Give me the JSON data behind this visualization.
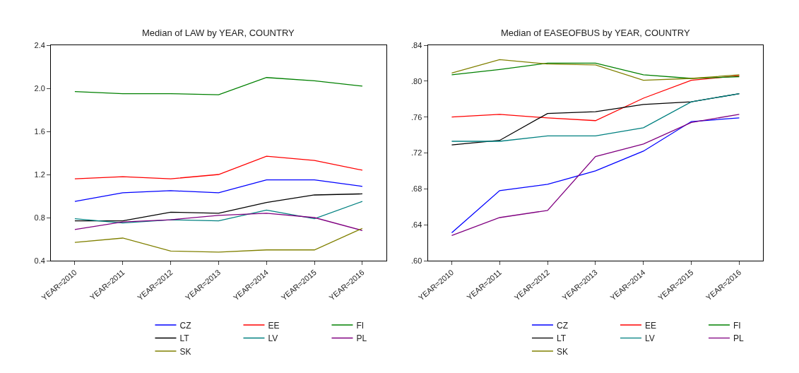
{
  "chart_data": [
    {
      "type": "line",
      "title": "Median of LAW by YEAR, COUNTRY",
      "categories": [
        "YEAR=2010",
        "YEAR=2011",
        "YEAR=2012",
        "YEAR=2013",
        "YEAR=2014",
        "YEAR=2015",
        "YEAR=2016"
      ],
      "ylim": [
        0.4,
        2.4
      ],
      "yticks": [
        {
          "value": 0.4,
          "label": "0.4"
        },
        {
          "value": 0.8,
          "label": "0.8"
        },
        {
          "value": 1.2,
          "label": "1.2"
        },
        {
          "value": 1.6,
          "label": "1.6"
        },
        {
          "value": 2.0,
          "label": "2.0"
        },
        {
          "value": 2.4,
          "label": "2.4"
        }
      ],
      "legend": "bottom",
      "marker": "none",
      "line_style": "solid",
      "series": [
        {
          "name": "CZ",
          "color": "#0000ff",
          "values": [
            0.95,
            1.03,
            1.05,
            1.03,
            1.15,
            1.15,
            1.09
          ]
        },
        {
          "name": "EE",
          "color": "#ff0000",
          "values": [
            1.16,
            1.18,
            1.16,
            1.2,
            1.37,
            1.33,
            1.24
          ]
        },
        {
          "name": "FI",
          "color": "#008000",
          "values": [
            1.97,
            1.95,
            1.95,
            1.94,
            2.1,
            2.07,
            2.02
          ]
        },
        {
          "name": "LT",
          "color": "#000000",
          "values": [
            0.77,
            0.77,
            0.85,
            0.84,
            0.94,
            1.01,
            1.02
          ]
        },
        {
          "name": "LV",
          "color": "#008080",
          "values": [
            0.79,
            0.75,
            0.78,
            0.77,
            0.87,
            0.79,
            0.95
          ]
        },
        {
          "name": "PL",
          "color": "#800080",
          "values": [
            0.69,
            0.76,
            0.78,
            0.82,
            0.84,
            0.8,
            0.68
          ]
        },
        {
          "name": "SK",
          "color": "#808000",
          "values": [
            0.57,
            0.61,
            0.49,
            0.48,
            0.5,
            0.5,
            0.7
          ]
        }
      ]
    },
    {
      "type": "line",
      "title": "Median of EASEOFBUS by YEAR, COUNTRY",
      "categories": [
        "YEAR=2010",
        "YEAR=2011",
        "YEAR=2012",
        "YEAR=2013",
        "YEAR=2014",
        "YEAR=2015",
        "YEAR=2016"
      ],
      "ylim": [
        0.6,
        0.84
      ],
      "yticks": [
        {
          "value": 0.6,
          "label": ".60"
        },
        {
          "value": 0.64,
          "label": ".64"
        },
        {
          "value": 0.68,
          "label": ".68"
        },
        {
          "value": 0.72,
          "label": ".72"
        },
        {
          "value": 0.76,
          "label": ".76"
        },
        {
          "value": 0.8,
          "label": ".80"
        },
        {
          "value": 0.84,
          "label": ".84"
        }
      ],
      "legend": "bottom",
      "marker": "none",
      "line_style": "solid",
      "series": [
        {
          "name": "CZ",
          "color": "#0000ff",
          "values": [
            0.631,
            0.678,
            0.685,
            0.7,
            0.722,
            0.755,
            0.759
          ]
        },
        {
          "name": "EE",
          "color": "#ff0000",
          "values": [
            0.76,
            0.763,
            0.759,
            0.756,
            0.781,
            0.801,
            0.806
          ]
        },
        {
          "name": "FI",
          "color": "#008000",
          "values": [
            0.807,
            0.813,
            0.82,
            0.82,
            0.807,
            0.803,
            0.805
          ]
        },
        {
          "name": "LT",
          "color": "#000000",
          "values": [
            0.729,
            0.734,
            0.764,
            0.766,
            0.774,
            0.777,
            0.786
          ]
        },
        {
          "name": "LV",
          "color": "#008080",
          "values": [
            0.733,
            0.733,
            0.739,
            0.739,
            0.748,
            0.777,
            0.786
          ]
        },
        {
          "name": "PL",
          "color": "#800080",
          "values": [
            0.628,
            0.648,
            0.656,
            0.716,
            0.73,
            0.754,
            0.763
          ]
        },
        {
          "name": "SK",
          "color": "#808000",
          "values": [
            0.809,
            0.824,
            0.819,
            0.818,
            0.801,
            0.803,
            0.807
          ]
        }
      ]
    }
  ]
}
